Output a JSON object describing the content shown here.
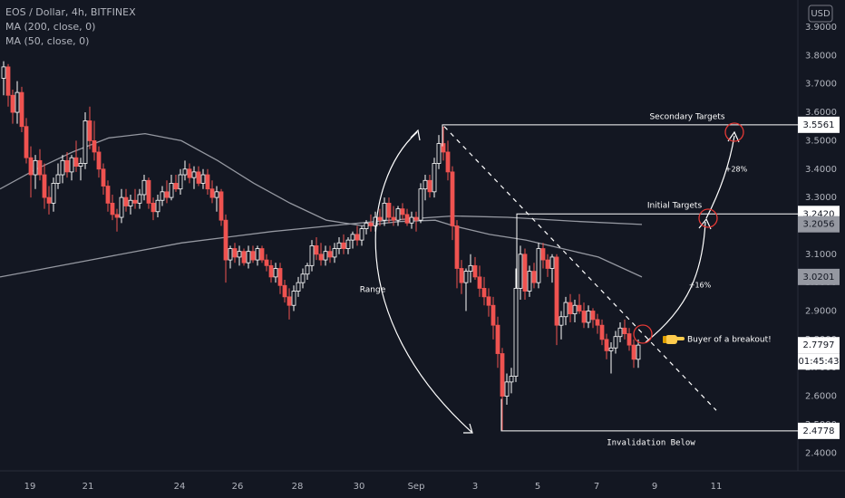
{
  "header": {
    "symbol_line": "EOS / Dollar, 4h, BITFINEX",
    "ma_long": "MA (200, close, 0)",
    "ma_short": "MA (50, close, 0)",
    "currency": "USD"
  },
  "chart_data": {
    "type": "candlestick",
    "title": "EOS / Dollar, 4h, BITFINEX",
    "currency": "USD",
    "ylim": [
      2.35,
      3.95
    ],
    "y_ticks": [
      "3.9000",
      "3.8000",
      "3.7000",
      "3.6000",
      "3.5000",
      "3.4000",
      "3.3000",
      "3.2000",
      "3.1000",
      "3.0000",
      "2.9000",
      "2.8000",
      "2.7000",
      "2.6000",
      "2.5000",
      "2.4000"
    ],
    "x_ticks": [
      "19",
      "21",
      "24",
      "26",
      "28",
      "30",
      "Sep",
      "3",
      "5",
      "7",
      "9",
      "11"
    ],
    "colors": {
      "bull": "#ffffff",
      "bear": "#ef5350",
      "background": "#131722",
      "ma": "#9598a1",
      "annotation": "#ffffff",
      "circle": "#e53935"
    },
    "price_labels": [
      {
        "value": 3.5561,
        "text": "3.5561",
        "style": "white"
      },
      {
        "value": 3.242,
        "text": "3.2420",
        "style": "white"
      },
      {
        "value": 3.2056,
        "text": "3.2056",
        "style": "gray"
      },
      {
        "value": 3.0201,
        "text": "3.0201",
        "style": "gray"
      },
      {
        "value": 2.7797,
        "text": "2.7797",
        "style": "white"
      },
      {
        "value": 2.4778,
        "text": "2.4778",
        "style": "white"
      }
    ],
    "countdown": "01:45:43",
    "annotations": {
      "range": "Range",
      "secondary_targets": "Secondary Targets",
      "initial_targets": "Initial Targets",
      "pct_28": "+28%",
      "pct_16": "+16%",
      "breakout": "Buyer of a breakout!",
      "breakout_icon": "pointing-hand",
      "invalidation": "Invalidation Below"
    },
    "ma200": [
      [
        0,
        3.02
      ],
      [
        100,
        3.08
      ],
      [
        200,
        3.14
      ],
      [
        300,
        3.18
      ],
      [
        380,
        3.205
      ],
      [
        430,
        3.22
      ],
      [
        500,
        3.235
      ],
      [
        560,
        3.23
      ],
      [
        640,
        3.215
      ],
      [
        708,
        3.205
      ]
    ],
    "ma50": [
      [
        0,
        3.33
      ],
      [
        40,
        3.4
      ],
      [
        80,
        3.46
      ],
      [
        120,
        3.51
      ],
      [
        160,
        3.525
      ],
      [
        200,
        3.5
      ],
      [
        240,
        3.43
      ],
      [
        280,
        3.35
      ],
      [
        320,
        3.28
      ],
      [
        360,
        3.22
      ],
      [
        400,
        3.2
      ],
      [
        440,
        3.215
      ],
      [
        480,
        3.22
      ],
      [
        500,
        3.2
      ],
      [
        540,
        3.17
      ],
      [
        580,
        3.15
      ],
      [
        620,
        3.12
      ],
      [
        660,
        3.09
      ],
      [
        708,
        3.02
      ]
    ],
    "candles": [
      {
        "x": 4,
        "o": 3.72,
        "h": 3.78,
        "l": 3.66,
        "c": 3.76
      },
      {
        "x": 9,
        "o": 3.76,
        "h": 3.77,
        "l": 3.62,
        "c": 3.66
      },
      {
        "x": 14,
        "o": 3.66,
        "h": 3.68,
        "l": 3.56,
        "c": 3.6
      },
      {
        "x": 19,
        "o": 3.6,
        "h": 3.71,
        "l": 3.56,
        "c": 3.67
      },
      {
        "x": 24,
        "o": 3.67,
        "h": 3.69,
        "l": 3.53,
        "c": 3.55
      },
      {
        "x": 29,
        "o": 3.55,
        "h": 3.58,
        "l": 3.42,
        "c": 3.44
      },
      {
        "x": 34,
        "o": 3.44,
        "h": 3.48,
        "l": 3.3,
        "c": 3.38
      },
      {
        "x": 39,
        "o": 3.38,
        "h": 3.45,
        "l": 3.33,
        "c": 3.43
      },
      {
        "x": 44,
        "o": 3.43,
        "h": 3.47,
        "l": 3.36,
        "c": 3.38
      },
      {
        "x": 49,
        "o": 3.38,
        "h": 3.42,
        "l": 3.26,
        "c": 3.3
      },
      {
        "x": 54,
        "o": 3.3,
        "h": 3.34,
        "l": 3.24,
        "c": 3.28
      },
      {
        "x": 59,
        "o": 3.28,
        "h": 3.37,
        "l": 3.25,
        "c": 3.35
      },
      {
        "x": 64,
        "o": 3.35,
        "h": 3.42,
        "l": 3.33,
        "c": 3.38
      },
      {
        "x": 69,
        "o": 3.38,
        "h": 3.45,
        "l": 3.35,
        "c": 3.43
      },
      {
        "x": 74,
        "o": 3.43,
        "h": 3.46,
        "l": 3.37,
        "c": 3.39
      },
      {
        "x": 79,
        "o": 3.39,
        "h": 3.45,
        "l": 3.36,
        "c": 3.44
      },
      {
        "x": 84,
        "o": 3.44,
        "h": 3.5,
        "l": 3.39,
        "c": 3.41
      },
      {
        "x": 89,
        "o": 3.41,
        "h": 3.44,
        "l": 3.36,
        "c": 3.42
      },
      {
        "x": 94,
        "o": 3.42,
        "h": 3.6,
        "l": 3.4,
        "c": 3.57
      },
      {
        "x": 99,
        "o": 3.57,
        "h": 3.62,
        "l": 3.47,
        "c": 3.5
      },
      {
        "x": 104,
        "o": 3.5,
        "h": 3.57,
        "l": 3.43,
        "c": 3.46
      },
      {
        "x": 109,
        "o": 3.46,
        "h": 3.48,
        "l": 3.37,
        "c": 3.4
      },
      {
        "x": 114,
        "o": 3.4,
        "h": 3.42,
        "l": 3.31,
        "c": 3.34
      },
      {
        "x": 119,
        "o": 3.34,
        "h": 3.36,
        "l": 3.25,
        "c": 3.28
      },
      {
        "x": 124,
        "o": 3.28,
        "h": 3.31,
        "l": 3.22,
        "c": 3.24
      },
      {
        "x": 129,
        "o": 3.24,
        "h": 3.26,
        "l": 3.18,
        "c": 3.23
      },
      {
        "x": 134,
        "o": 3.23,
        "h": 3.33,
        "l": 3.21,
        "c": 3.3
      },
      {
        "x": 139,
        "o": 3.3,
        "h": 3.33,
        "l": 3.25,
        "c": 3.27
      },
      {
        "x": 144,
        "o": 3.27,
        "h": 3.31,
        "l": 3.24,
        "c": 3.29
      },
      {
        "x": 149,
        "o": 3.29,
        "h": 3.33,
        "l": 3.26,
        "c": 3.28
      },
      {
        "x": 154,
        "o": 3.28,
        "h": 3.33,
        "l": 3.26,
        "c": 3.31
      },
      {
        "x": 159,
        "o": 3.31,
        "h": 3.38,
        "l": 3.29,
        "c": 3.36
      },
      {
        "x": 164,
        "o": 3.36,
        "h": 3.37,
        "l": 3.26,
        "c": 3.28
      },
      {
        "x": 169,
        "o": 3.28,
        "h": 3.3,
        "l": 3.22,
        "c": 3.25
      },
      {
        "x": 174,
        "o": 3.25,
        "h": 3.31,
        "l": 3.23,
        "c": 3.29
      },
      {
        "x": 179,
        "o": 3.29,
        "h": 3.34,
        "l": 3.27,
        "c": 3.32
      },
      {
        "x": 184,
        "o": 3.32,
        "h": 3.36,
        "l": 3.28,
        "c": 3.3
      },
      {
        "x": 189,
        "o": 3.3,
        "h": 3.38,
        "l": 3.29,
        "c": 3.35
      },
      {
        "x": 194,
        "o": 3.35,
        "h": 3.38,
        "l": 3.32,
        "c": 3.33
      },
      {
        "x": 199,
        "o": 3.33,
        "h": 3.4,
        "l": 3.31,
        "c": 3.38
      },
      {
        "x": 204,
        "o": 3.38,
        "h": 3.43,
        "l": 3.36,
        "c": 3.4
      },
      {
        "x": 209,
        "o": 3.4,
        "h": 3.42,
        "l": 3.35,
        "c": 3.37
      },
      {
        "x": 214,
        "o": 3.37,
        "h": 3.41,
        "l": 3.33,
        "c": 3.39
      },
      {
        "x": 219,
        "o": 3.39,
        "h": 3.41,
        "l": 3.34,
        "c": 3.35
      },
      {
        "x": 224,
        "o": 3.35,
        "h": 3.4,
        "l": 3.33,
        "c": 3.38
      },
      {
        "x": 229,
        "o": 3.38,
        "h": 3.4,
        "l": 3.31,
        "c": 3.33
      },
      {
        "x": 234,
        "o": 3.33,
        "h": 3.36,
        "l": 3.28,
        "c": 3.3
      },
      {
        "x": 239,
        "o": 3.3,
        "h": 3.34,
        "l": 3.25,
        "c": 3.32
      },
      {
        "x": 244,
        "o": 3.32,
        "h": 3.33,
        "l": 3.2,
        "c": 3.22
      },
      {
        "x": 249,
        "o": 3.22,
        "h": 3.24,
        "l": 3.0,
        "c": 3.08
      },
      {
        "x": 254,
        "o": 3.08,
        "h": 3.13,
        "l": 3.05,
        "c": 3.12
      },
      {
        "x": 259,
        "o": 3.12,
        "h": 3.14,
        "l": 3.07,
        "c": 3.09
      },
      {
        "x": 264,
        "o": 3.09,
        "h": 3.13,
        "l": 3.06,
        "c": 3.11
      },
      {
        "x": 269,
        "o": 3.11,
        "h": 3.12,
        "l": 3.06,
        "c": 3.07
      },
      {
        "x": 274,
        "o": 3.07,
        "h": 3.13,
        "l": 3.05,
        "c": 3.11
      },
      {
        "x": 279,
        "o": 3.11,
        "h": 3.13,
        "l": 3.07,
        "c": 3.08
      },
      {
        "x": 284,
        "o": 3.08,
        "h": 3.13,
        "l": 3.06,
        "c": 3.12
      },
      {
        "x": 289,
        "o": 3.12,
        "h": 3.13,
        "l": 3.07,
        "c": 3.08
      },
      {
        "x": 294,
        "o": 3.08,
        "h": 3.1,
        "l": 3.04,
        "c": 3.06
      },
      {
        "x": 299,
        "o": 3.06,
        "h": 3.08,
        "l": 3.0,
        "c": 3.02
      },
      {
        "x": 304,
        "o": 3.02,
        "h": 3.07,
        "l": 3.0,
        "c": 3.05
      },
      {
        "x": 309,
        "o": 3.05,
        "h": 3.07,
        "l": 2.96,
        "c": 2.99
      },
      {
        "x": 314,
        "o": 2.99,
        "h": 3.01,
        "l": 2.93,
        "c": 2.95
      },
      {
        "x": 319,
        "o": 2.95,
        "h": 2.98,
        "l": 2.87,
        "c": 2.92
      },
      {
        "x": 324,
        "o": 2.92,
        "h": 2.99,
        "l": 2.9,
        "c": 2.97
      },
      {
        "x": 329,
        "o": 2.97,
        "h": 3.02,
        "l": 2.95,
        "c": 3.0
      },
      {
        "x": 334,
        "o": 3.0,
        "h": 3.05,
        "l": 2.98,
        "c": 3.03
      },
      {
        "x": 339,
        "o": 3.03,
        "h": 3.07,
        "l": 3.01,
        "c": 3.06
      },
      {
        "x": 344,
        "o": 3.06,
        "h": 3.15,
        "l": 3.04,
        "c": 3.13
      },
      {
        "x": 349,
        "o": 3.13,
        "h": 3.16,
        "l": 3.08,
        "c": 3.1
      },
      {
        "x": 354,
        "o": 3.1,
        "h": 3.14,
        "l": 3.06,
        "c": 3.08
      },
      {
        "x": 359,
        "o": 3.08,
        "h": 3.13,
        "l": 3.06,
        "c": 3.11
      },
      {
        "x": 364,
        "o": 3.11,
        "h": 3.13,
        "l": 3.07,
        "c": 3.09
      },
      {
        "x": 369,
        "o": 3.09,
        "h": 3.14,
        "l": 3.07,
        "c": 3.12
      },
      {
        "x": 374,
        "o": 3.12,
        "h": 3.16,
        "l": 3.1,
        "c": 3.14
      },
      {
        "x": 379,
        "o": 3.14,
        "h": 3.17,
        "l": 3.1,
        "c": 3.12
      },
      {
        "x": 384,
        "o": 3.12,
        "h": 3.16,
        "l": 3.1,
        "c": 3.15
      },
      {
        "x": 389,
        "o": 3.15,
        "h": 3.18,
        "l": 3.12,
        "c": 3.17
      },
      {
        "x": 394,
        "o": 3.17,
        "h": 3.2,
        "l": 3.13,
        "c": 3.15
      },
      {
        "x": 399,
        "o": 3.15,
        "h": 3.2,
        "l": 3.13,
        "c": 3.19
      },
      {
        "x": 404,
        "o": 3.19,
        "h": 3.22,
        "l": 3.17,
        "c": 3.21
      },
      {
        "x": 409,
        "o": 3.21,
        "h": 3.24,
        "l": 3.18,
        "c": 3.2
      },
      {
        "x": 414,
        "o": 3.2,
        "h": 3.25,
        "l": 3.18,
        "c": 3.23
      },
      {
        "x": 419,
        "o": 3.23,
        "h": 3.26,
        "l": 3.2,
        "c": 3.22
      },
      {
        "x": 424,
        "o": 3.22,
        "h": 3.3,
        "l": 3.2,
        "c": 3.28
      },
      {
        "x": 429,
        "o": 3.28,
        "h": 3.3,
        "l": 3.21,
        "c": 3.23
      },
      {
        "x": 434,
        "o": 3.23,
        "h": 3.27,
        "l": 3.2,
        "c": 3.22
      },
      {
        "x": 439,
        "o": 3.22,
        "h": 3.27,
        "l": 3.2,
        "c": 3.26
      },
      {
        "x": 444,
        "o": 3.26,
        "h": 3.28,
        "l": 3.22,
        "c": 3.24
      },
      {
        "x": 449,
        "o": 3.24,
        "h": 3.26,
        "l": 3.2,
        "c": 3.21
      },
      {
        "x": 454,
        "o": 3.21,
        "h": 3.25,
        "l": 3.19,
        "c": 3.23
      },
      {
        "x": 459,
        "o": 3.23,
        "h": 3.25,
        "l": 3.18,
        "c": 3.22
      },
      {
        "x": 464,
        "o": 3.22,
        "h": 3.35,
        "l": 3.21,
        "c": 3.33
      },
      {
        "x": 469,
        "o": 3.33,
        "h": 3.38,
        "l": 3.29,
        "c": 3.36
      },
      {
        "x": 474,
        "o": 3.36,
        "h": 3.38,
        "l": 3.3,
        "c": 3.32
      },
      {
        "x": 479,
        "o": 3.32,
        "h": 3.44,
        "l": 3.3,
        "c": 3.42
      },
      {
        "x": 484,
        "o": 3.42,
        "h": 3.52,
        "l": 3.4,
        "c": 3.49
      },
      {
        "x": 489,
        "o": 3.49,
        "h": 3.55,
        "l": 3.43,
        "c": 3.46
      },
      {
        "x": 494,
        "o": 3.46,
        "h": 3.5,
        "l": 3.36,
        "c": 3.39
      },
      {
        "x": 499,
        "o": 3.39,
        "h": 3.41,
        "l": 3.15,
        "c": 3.2
      },
      {
        "x": 504,
        "o": 3.2,
        "h": 3.22,
        "l": 2.98,
        "c": 3.05
      },
      {
        "x": 509,
        "o": 3.05,
        "h": 3.08,
        "l": 2.96,
        "c": 3.0
      },
      {
        "x": 514,
        "o": 3.0,
        "h": 3.05,
        "l": 2.9,
        "c": 3.04
      },
      {
        "x": 519,
        "o": 3.04,
        "h": 3.1,
        "l": 3.0,
        "c": 3.06
      },
      {
        "x": 524,
        "o": 3.06,
        "h": 3.09,
        "l": 3.01,
        "c": 3.02
      },
      {
        "x": 529,
        "o": 3.02,
        "h": 3.06,
        "l": 2.95,
        "c": 2.98
      },
      {
        "x": 534,
        "o": 2.98,
        "h": 3.02,
        "l": 2.92,
        "c": 2.95
      },
      {
        "x": 539,
        "o": 2.95,
        "h": 2.98,
        "l": 2.88,
        "c": 2.92
      },
      {
        "x": 544,
        "o": 2.92,
        "h": 2.95,
        "l": 2.8,
        "c": 2.85
      },
      {
        "x": 549,
        "o": 2.85,
        "h": 2.88,
        "l": 2.7,
        "c": 2.75
      },
      {
        "x": 554,
        "o": 2.75,
        "h": 2.77,
        "l": 2.48,
        "c": 2.6
      },
      {
        "x": 559,
        "o": 2.6,
        "h": 2.68,
        "l": 2.57,
        "c": 2.65
      },
      {
        "x": 564,
        "o": 2.65,
        "h": 2.7,
        "l": 2.61,
        "c": 2.67
      },
      {
        "x": 569,
        "o": 2.67,
        "h": 3.05,
        "l": 2.65,
        "c": 2.98
      },
      {
        "x": 574,
        "o": 2.98,
        "h": 3.13,
        "l": 2.94,
        "c": 3.1
      },
      {
        "x": 579,
        "o": 3.1,
        "h": 3.12,
        "l": 2.94,
        "c": 2.97
      },
      {
        "x": 584,
        "o": 2.97,
        "h": 3.06,
        "l": 2.95,
        "c": 3.04
      },
      {
        "x": 589,
        "o": 3.04,
        "h": 3.07,
        "l": 2.98,
        "c": 3.0
      },
      {
        "x": 594,
        "o": 3.0,
        "h": 3.14,
        "l": 2.98,
        "c": 3.12
      },
      {
        "x": 599,
        "o": 3.12,
        "h": 3.14,
        "l": 3.05,
        "c": 3.08
      },
      {
        "x": 604,
        "o": 3.08,
        "h": 3.1,
        "l": 3.02,
        "c": 3.05
      },
      {
        "x": 609,
        "o": 3.05,
        "h": 3.1,
        "l": 3.0,
        "c": 3.09
      },
      {
        "x": 614,
        "o": 3.09,
        "h": 3.1,
        "l": 2.78,
        "c": 2.85
      },
      {
        "x": 619,
        "o": 2.85,
        "h": 2.9,
        "l": 2.8,
        "c": 2.88
      },
      {
        "x": 624,
        "o": 2.88,
        "h": 2.95,
        "l": 2.85,
        "c": 2.93
      },
      {
        "x": 629,
        "o": 2.93,
        "h": 2.96,
        "l": 2.86,
        "c": 2.89
      },
      {
        "x": 634,
        "o": 2.89,
        "h": 2.94,
        "l": 2.86,
        "c": 2.92
      },
      {
        "x": 639,
        "o": 2.92,
        "h": 2.96,
        "l": 2.89,
        "c": 2.9
      },
      {
        "x": 644,
        "o": 2.9,
        "h": 2.93,
        "l": 2.84,
        "c": 2.86
      },
      {
        "x": 649,
        "o": 2.86,
        "h": 2.92,
        "l": 2.84,
        "c": 2.9
      },
      {
        "x": 654,
        "o": 2.9,
        "h": 2.91,
        "l": 2.84,
        "c": 2.87
      },
      {
        "x": 659,
        "o": 2.87,
        "h": 2.89,
        "l": 2.82,
        "c": 2.85
      },
      {
        "x": 664,
        "o": 2.85,
        "h": 2.87,
        "l": 2.78,
        "c": 2.8
      },
      {
        "x": 669,
        "o": 2.8,
        "h": 2.82,
        "l": 2.73,
        "c": 2.76
      },
      {
        "x": 674,
        "o": 2.76,
        "h": 2.79,
        "l": 2.68,
        "c": 2.77
      },
      {
        "x": 679,
        "o": 2.77,
        "h": 2.83,
        "l": 2.75,
        "c": 2.81
      },
      {
        "x": 684,
        "o": 2.81,
        "h": 2.86,
        "l": 2.79,
        "c": 2.84
      },
      {
        "x": 689,
        "o": 2.84,
        "h": 2.87,
        "l": 2.8,
        "c": 2.82
      },
      {
        "x": 694,
        "o": 2.82,
        "h": 2.84,
        "l": 2.76,
        "c": 2.78
      },
      {
        "x": 699,
        "o": 2.78,
        "h": 2.8,
        "l": 2.7,
        "c": 2.73
      },
      {
        "x": 704,
        "o": 2.73,
        "h": 2.8,
        "l": 2.7,
        "c": 2.78
      }
    ]
  }
}
